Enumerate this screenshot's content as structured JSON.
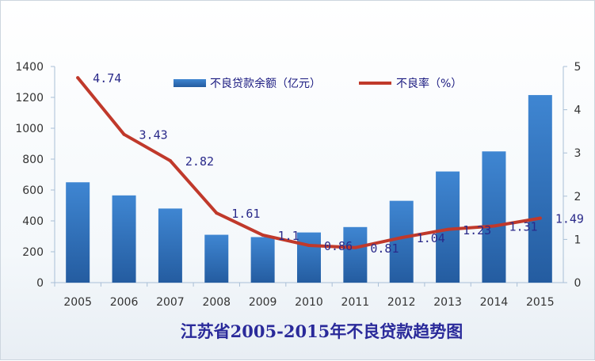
{
  "chart_data": {
    "type": "bar",
    "title": "江苏省2005-2015年不良贷款趋势图",
    "categories": [
      "2005",
      "2006",
      "2007",
      "2008",
      "2009",
      "2010",
      "2011",
      "2012",
      "2013",
      "2014",
      "2015"
    ],
    "series": [
      {
        "name": "不良贷款余额（亿元）",
        "type": "bar",
        "axis": "left",
        "color": "#2e6db4",
        "values": [
          650,
          565,
          480,
          310,
          295,
          325,
          360,
          530,
          720,
          850,
          1215
        ]
      },
      {
        "name": "不良率（%）",
        "type": "line",
        "axis": "right",
        "color": "#c0392b",
        "values": [
          4.74,
          3.43,
          2.82,
          1.61,
          1.1,
          0.86,
          0.81,
          1.04,
          1.23,
          1.31,
          1.49
        ],
        "labels": [
          "4.74",
          "3.43",
          "2.82",
          "1.61",
          "1.1",
          "0.86",
          "0.81",
          "1.04",
          "1.23",
          "1.31",
          "1.49"
        ]
      }
    ],
    "y_left": {
      "min": 0,
      "max": 1400,
      "step": 200,
      "ticks": [
        "0",
        "200",
        "400",
        "600",
        "800",
        "1000",
        "1200",
        "1400"
      ]
    },
    "y_right": {
      "min": 0,
      "max": 5,
      "step": 1,
      "ticks": [
        "0",
        "1",
        "2",
        "3",
        "4",
        "5"
      ]
    },
    "legend": {
      "position": "top-center"
    },
    "grid": false
  }
}
